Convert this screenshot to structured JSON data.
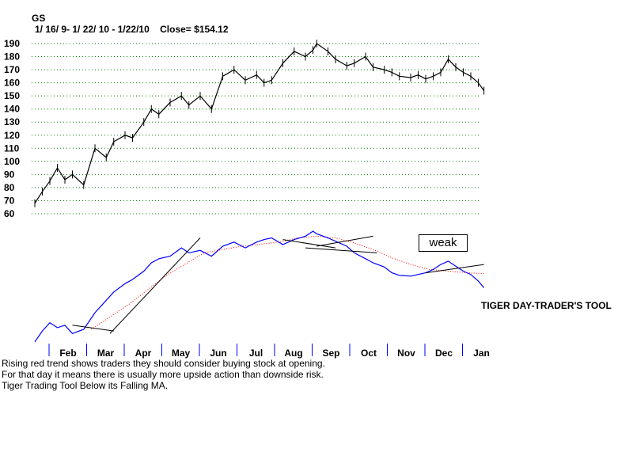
{
  "ticker": "GS",
  "date_line": "1/ 16/ 9- 1/ 22/ 10 - 1/22/10",
  "close_line": "Close= $154.12",
  "status_box": "weak",
  "tool_title": "TIGER DAY-TRADER'S TOOL",
  "notes": [
    "Rising red trend shows traders they should consider buying stock at opening.",
    " For that day it means there is usually more upside action than downside risk.",
    "Tiger Trading Tool Below its Falling MA."
  ],
  "colors": {
    "price": "#000000",
    "grid": "#008000",
    "tool_line": "#0000ff",
    "moving_average": "#ff0000"
  },
  "chart_data": {
    "type": "line",
    "title": "GS",
    "y_ticks": [
      60,
      70,
      80,
      90,
      100,
      110,
      120,
      130,
      140,
      150,
      160,
      170,
      180,
      190
    ],
    "ylim": [
      60,
      190
    ],
    "months": [
      "Feb",
      "Mar",
      "Apr",
      "May",
      "Jun",
      "Jul",
      "Aug",
      "Sep",
      "Oct",
      "Nov",
      "Dec",
      "Jan"
    ],
    "grid": true,
    "price_series": {
      "x_month_index": [
        0,
        0.2,
        0.4,
        0.6,
        0.8,
        1.0,
        1.3,
        1.6,
        1.9,
        2.1,
        2.4,
        2.6,
        2.9,
        3.1,
        3.3,
        3.6,
        3.9,
        4.1,
        4.4,
        4.7,
        5.0,
        5.3,
        5.6,
        5.9,
        6.1,
        6.3,
        6.6,
        6.9,
        7.2,
        7.4,
        7.5,
        7.8,
        8.0,
        8.3,
        8.5,
        8.8,
        9.0,
        9.3,
        9.5,
        9.7,
        10.0,
        10.2,
        10.4,
        10.6,
        10.8,
        11.0,
        11.2,
        11.4,
        11.6,
        11.8,
        11.95
      ],
      "close": [
        68,
        77,
        85,
        95,
        86,
        90,
        82,
        110,
        103,
        115,
        120,
        118,
        130,
        140,
        136,
        145,
        150,
        143,
        150,
        140,
        165,
        170,
        162,
        166,
        160,
        162,
        175,
        184,
        180,
        185,
        190,
        184,
        178,
        173,
        175,
        180,
        172,
        170,
        168,
        165,
        164,
        166,
        163,
        165,
        168,
        178,
        172,
        168,
        165,
        160,
        154
      ]
    },
    "indicator_series": {
      "name": "Tiger Day-Trader's Tool",
      "x_month_index": [
        0,
        0.2,
        0.4,
        0.6,
        0.8,
        1.0,
        1.3,
        1.6,
        1.9,
        2.1,
        2.4,
        2.6,
        2.9,
        3.1,
        3.3,
        3.6,
        3.9,
        4.1,
        4.4,
        4.7,
        5.0,
        5.3,
        5.6,
        5.9,
        6.1,
        6.3,
        6.6,
        6.9,
        7.2,
        7.4,
        7.5,
        7.8,
        8.0,
        8.3,
        8.5,
        8.8,
        9.0,
        9.3,
        9.5,
        9.7,
        10.0,
        10.2,
        10.4,
        10.6,
        10.8,
        11.0,
        11.2,
        11.4,
        11.6,
        11.8,
        11.95
      ],
      "values": [
        5,
        18,
        28,
        22,
        25,
        15,
        20,
        40,
        55,
        65,
        75,
        80,
        90,
        100,
        105,
        108,
        118,
        112,
        115,
        108,
        120,
        125,
        118,
        125,
        128,
        130,
        122,
        128,
        132,
        138,
        135,
        130,
        126,
        120,
        112,
        105,
        100,
        95,
        88,
        85,
        84,
        86,
        88,
        92,
        98,
        102,
        96,
        90,
        86,
        78,
        70
      ],
      "range": [
        0,
        140
      ]
    },
    "moving_average": {
      "name": "MA",
      "x_month_index": [
        1.5,
        2.5,
        3.5,
        4.5,
        5.5,
        6.5,
        7.0,
        7.5,
        8.0,
        8.5,
        9.0,
        9.5,
        10.0,
        10.5,
        11.0,
        11.5,
        11.95
      ],
      "values": [
        20,
        50,
        85,
        112,
        120,
        125,
        130,
        132,
        130,
        124,
        116,
        106,
        98,
        92,
        90,
        88,
        87
      ]
    }
  }
}
